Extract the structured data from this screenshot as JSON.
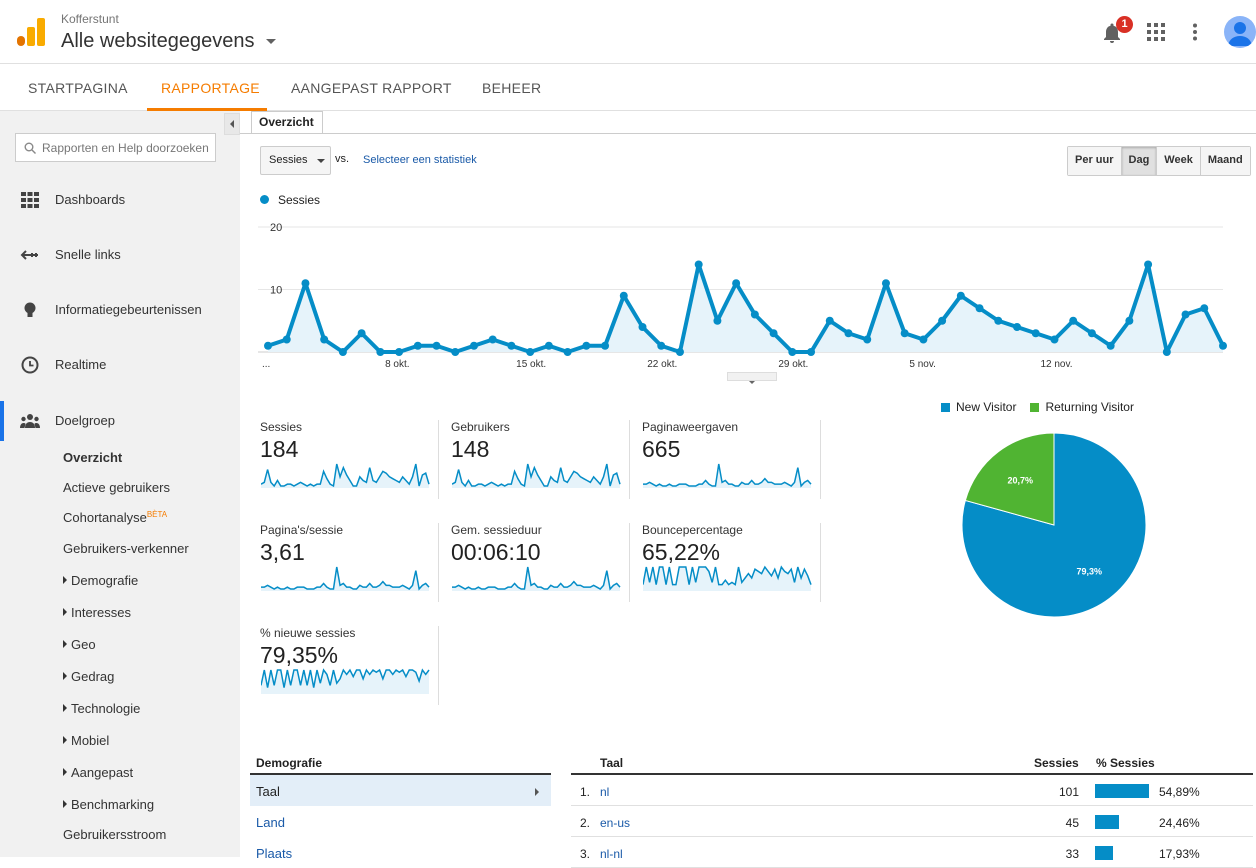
{
  "header": {
    "account": "Kofferstunt",
    "property": "Alle websitegegevens",
    "notifications": "1"
  },
  "nav": {
    "tabs": [
      "STARTPAGINA",
      "RAPPORTAGE",
      "AANGEPAST RAPPORT",
      "BEHEER"
    ],
    "active": "RAPPORTAGE"
  },
  "sidebar": {
    "search_placeholder": "Rapporten en Help doorzoeken",
    "main_items": [
      "Dashboards",
      "Snelle links",
      "Informatiegebeurtenissen",
      "Realtime",
      "Doelgroep"
    ],
    "sub_items": [
      "Overzicht",
      "Actieve gebruikers",
      "Cohortanalyse",
      "Gebruikers-verkenner",
      "Demografie",
      "Interesses",
      "Geo",
      "Gedrag",
      "Technologie",
      "Mobiel",
      "Aangepast",
      "Benchmarking",
      "Gebruikersstroom"
    ],
    "beta": "BÈTA"
  },
  "report": {
    "tab": "Overzicht",
    "metric": "Sessies",
    "vs": "vs.",
    "compare_link": "Selecteer een statistiek",
    "periods": [
      "Per uur",
      "Dag",
      "Week",
      "Maand"
    ],
    "active_period": "Dag",
    "series_label": "Sessies"
  },
  "chart_data": {
    "type": "area",
    "series": [
      {
        "name": "Sessies",
        "values": [
          1,
          2,
          11,
          2,
          0,
          3,
          0,
          0,
          1,
          1,
          0,
          1,
          2,
          1,
          0,
          1,
          0,
          1,
          1,
          9,
          4,
          1,
          0,
          14,
          5,
          11,
          6,
          3,
          0,
          0,
          5,
          3,
          2,
          11,
          3,
          2,
          5,
          9,
          7,
          5,
          4,
          3,
          2,
          5,
          3,
          1,
          5,
          14,
          0,
          6,
          7,
          1
        ]
      }
    ],
    "ylim": [
      0,
      20
    ],
    "y_ticks": [
      "10",
      "20"
    ],
    "x_ticks": [
      "...",
      "8 okt.",
      "15 okt.",
      "22 okt.",
      "29 okt.",
      "5 nov.",
      "12 nov."
    ],
    "color": "#058dc7"
  },
  "scorecards": [
    {
      "label": "Sessies",
      "value": "184"
    },
    {
      "label": "Gebruikers",
      "value": "148"
    },
    {
      "label": "Paginaweergaven",
      "value": "665"
    },
    {
      "label": "Pagina's/sessie",
      "value": "3,61"
    },
    {
      "label": "Gem. sessieduur",
      "value": "00:06:10"
    },
    {
      "label": "Bouncepercentage",
      "value": "65,22%"
    },
    {
      "label": "% nieuwe sessies",
      "value": "79,35%"
    }
  ],
  "pie": {
    "legend": [
      "New Visitor",
      "Returning Visitor"
    ],
    "colors": [
      "#058dc7",
      "#50b432"
    ],
    "values": [
      79.3,
      20.7
    ],
    "labels": [
      "79,3%",
      "20,7%"
    ]
  },
  "demographics": {
    "header": "Demografie",
    "items": [
      "Taal",
      "Land",
      "Plaats"
    ],
    "active": "Taal"
  },
  "table": {
    "headers": [
      "Taal",
      "Sessies",
      "% Sessies"
    ],
    "rows": [
      {
        "rank": "1.",
        "lang": "nl",
        "sessions": "101",
        "pct": "54,89%",
        "share": 54.89
      },
      {
        "rank": "2.",
        "lang": "en-us",
        "sessions": "45",
        "pct": "24,46%",
        "share": 24.46
      },
      {
        "rank": "3.",
        "lang": "nl-nl",
        "sessions": "33",
        "pct": "17,93%",
        "share": 17.93
      }
    ]
  }
}
